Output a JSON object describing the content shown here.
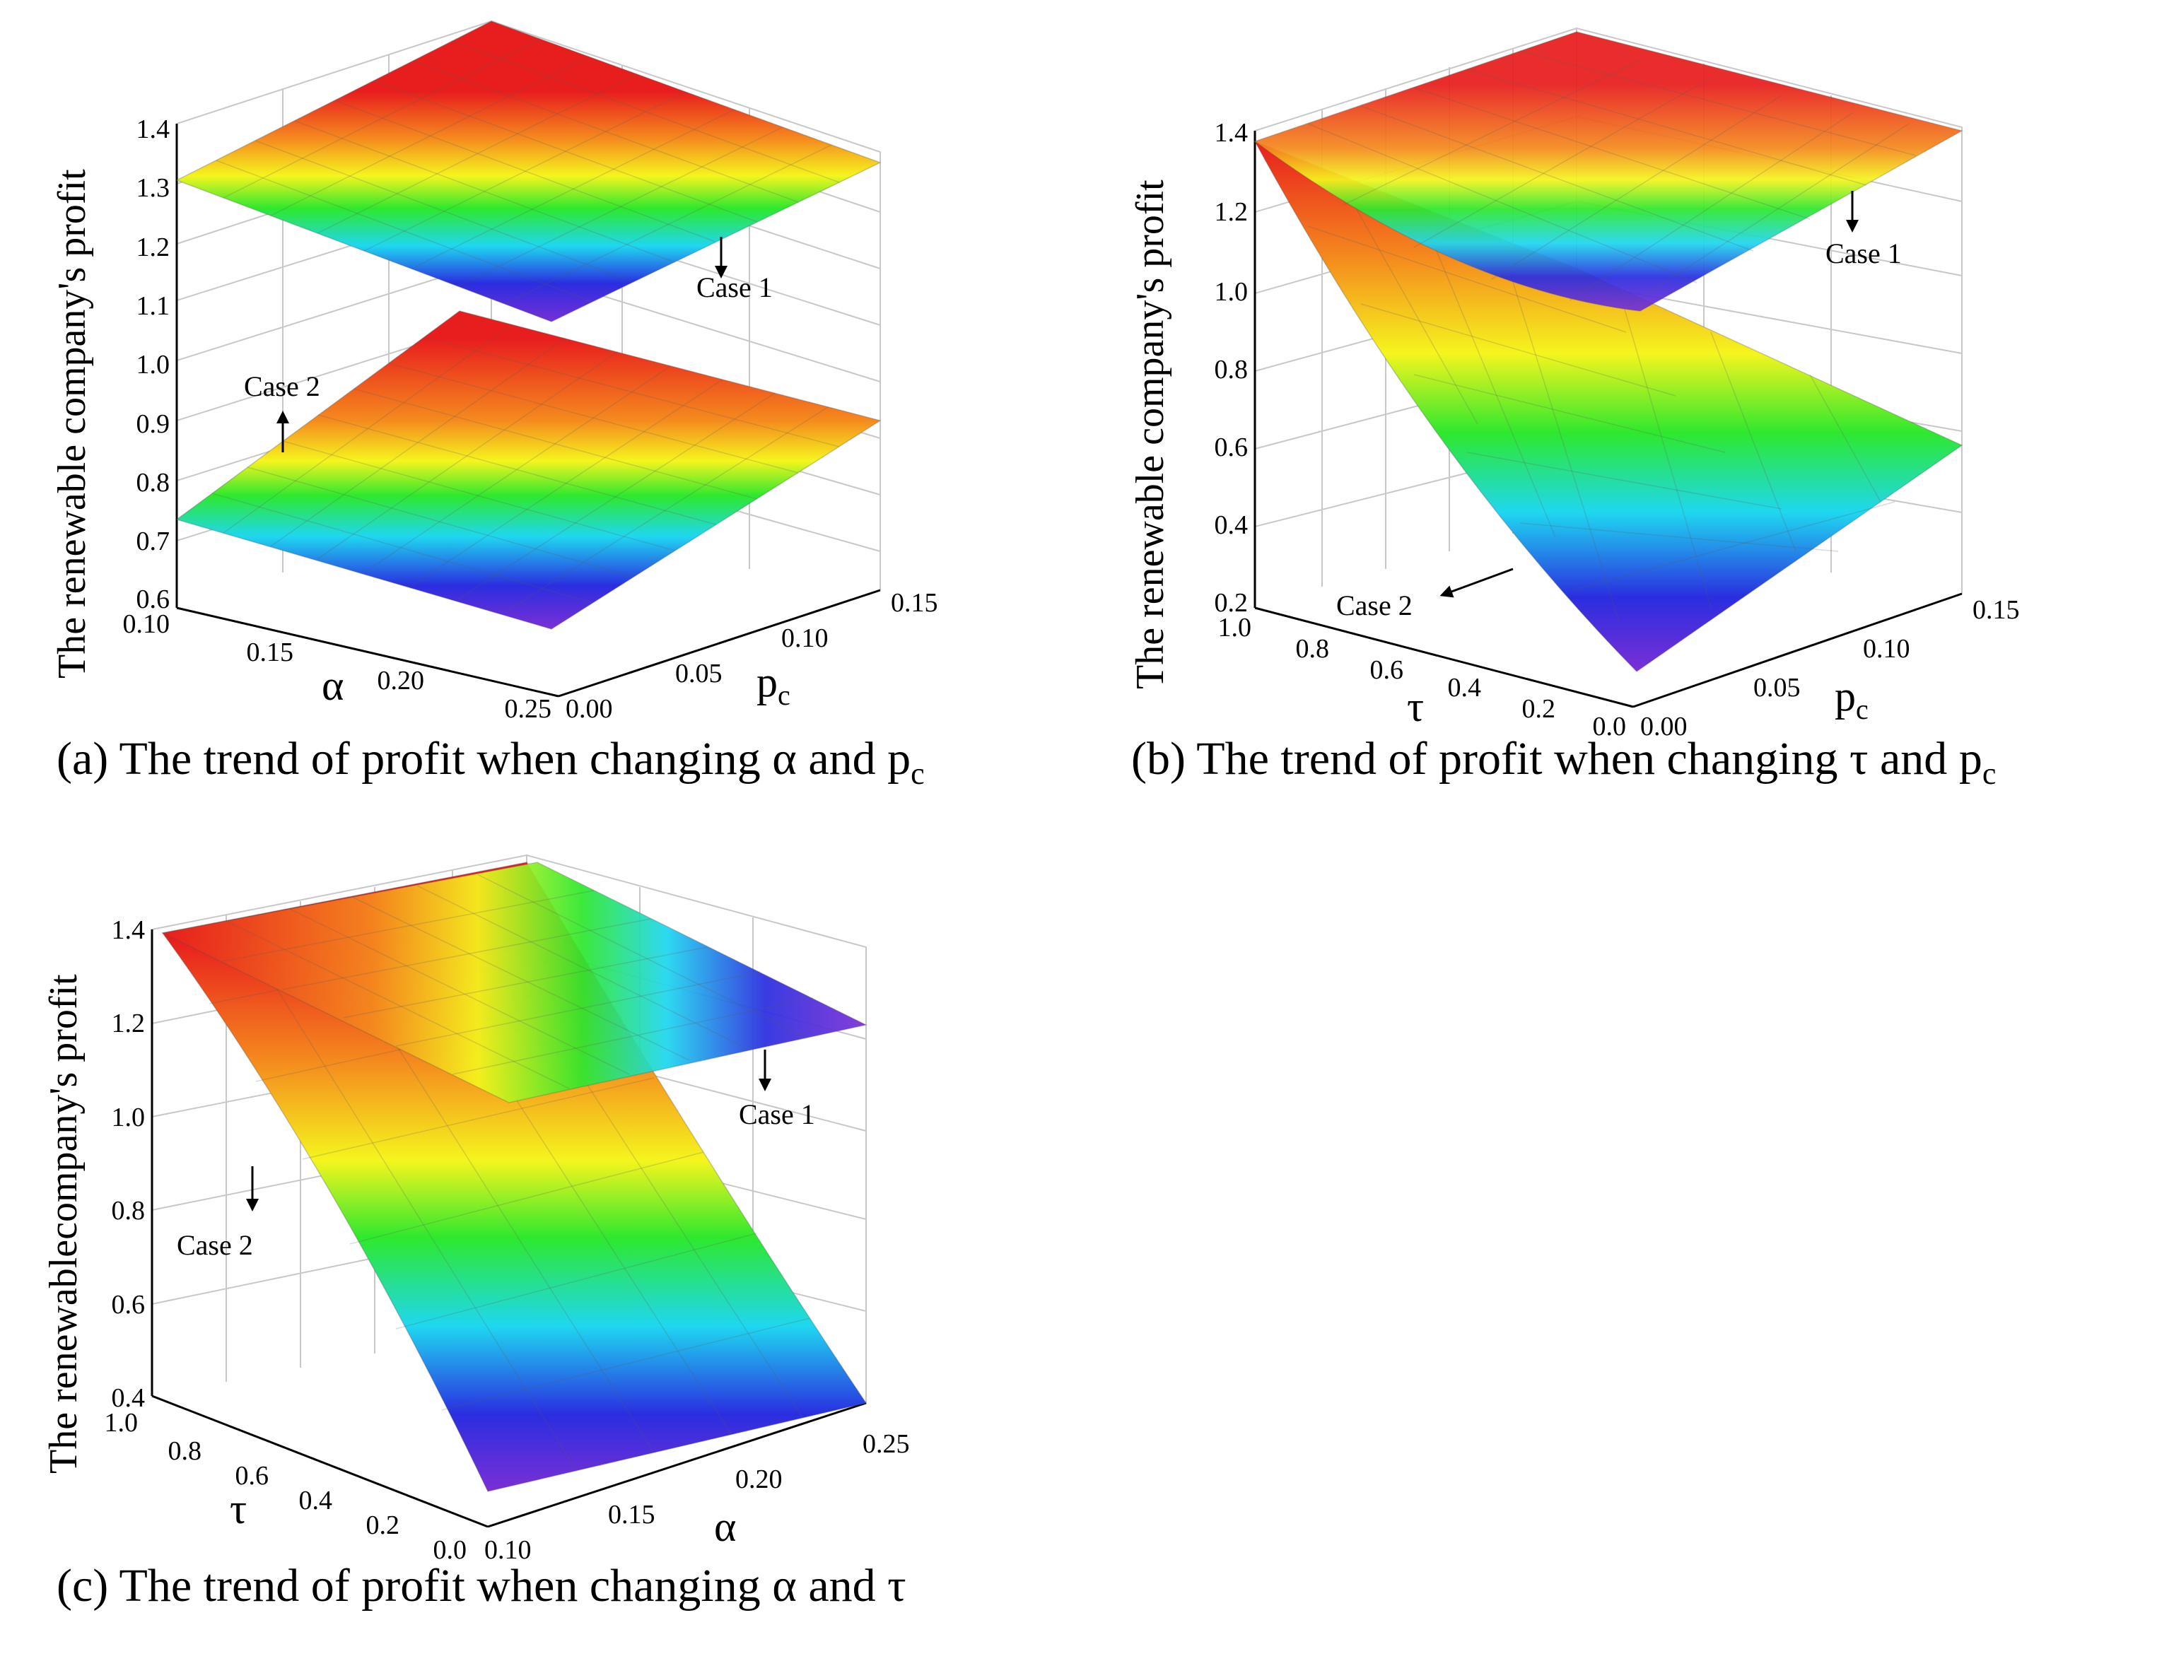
{
  "colors": {
    "colormap": [
      "#7b2fd6",
      "#2a2ee0",
      "#1fd7f0",
      "#2ee82e",
      "#f5f51e",
      "#f58a1e",
      "#e81e1e"
    ],
    "grid": "#c8c8c8",
    "axes": "#000000",
    "mesh": "rgba(90,90,90,0.22)"
  },
  "chart_data": [
    {
      "id": "a",
      "type": "surface3d",
      "caption_text": "(a) The trend of profit when changing ",
      "caption_sym1": "α",
      "caption_and": " and ",
      "caption_sym2": "p",
      "caption_sub": "c",
      "ylabel": "The renewable company's profit",
      "depth_label": "α",
      "width_label": "p",
      "width_label_sub": "c",
      "zlim": [
        0.6,
        1.4
      ],
      "z_ticks": [
        "0.6",
        "0.7",
        "0.8",
        "0.9",
        "1.0",
        "1.1",
        "1.2",
        "1.3",
        "1.4"
      ],
      "depth_ticks": [
        "0.10",
        "0.15",
        "0.20",
        "0.25"
      ],
      "width_ticks": [
        "0.00",
        "0.05",
        "0.10",
        "0.15"
      ],
      "depth_range": [
        0.1,
        0.25
      ],
      "width_range": [
        0.0,
        0.15
      ],
      "surfaces": [
        {
          "name": "Case 1",
          "z_grid": [
            [
              1.28,
              1.29,
              1.31,
              1.33
            ],
            [
              1.22,
              1.26,
              1.3,
              1.34
            ],
            [
              1.13,
              1.22,
              1.29,
              1.35
            ],
            [
              1.06,
              1.18,
              1.28,
              1.37
            ]
          ]
        },
        {
          "name": "Case 2",
          "z_grid": [
            [
              0.73,
              0.76,
              0.83,
              0.89
            ],
            [
              0.71,
              0.76,
              0.84,
              0.92
            ],
            [
              0.69,
              0.76,
              0.85,
              0.94
            ],
            [
              0.67,
              0.76,
              0.86,
              0.95
            ]
          ]
        }
      ],
      "annotations": [
        {
          "text": "Case 1",
          "arrow": "down"
        },
        {
          "text": "Case 2",
          "arrow": "up"
        }
      ]
    },
    {
      "id": "b",
      "type": "surface3d",
      "caption_text": "(b) The trend of profit when changing ",
      "caption_sym1": "τ",
      "caption_and": " and ",
      "caption_sym2": "p",
      "caption_sub": "c",
      "ylabel": "The renewable company's profit",
      "depth_label": "τ",
      "width_label": "p",
      "width_label_sub": "c",
      "zlim": [
        0.2,
        1.4
      ],
      "z_ticks": [
        "0.2",
        "0.4",
        "0.6",
        "0.8",
        "1.0",
        "1.2",
        "1.4"
      ],
      "depth_ticks": [
        "1.0",
        "0.8",
        "0.6",
        "0.4",
        "0.2",
        "0.0"
      ],
      "width_ticks": [
        "0.00",
        "0.05",
        "0.10",
        "0.15"
      ],
      "depth_range": [
        1.0,
        0.0
      ],
      "width_range": [
        0.0,
        0.15
      ],
      "surfaces": [
        {
          "name": "Case 1",
          "z_grid": [
            [
              1.38,
              1.4,
              1.42,
              1.43
            ],
            [
              1.3,
              1.34,
              1.38,
              1.42
            ],
            [
              1.16,
              1.25,
              1.33,
              1.41
            ],
            [
              1.0,
              1.15,
              1.28,
              1.4
            ],
            [
              0.9,
              1.08,
              1.24,
              1.4
            ],
            [
              0.86,
              1.05,
              1.22,
              1.4
            ]
          ]
        },
        {
          "name": "Case 2",
          "z_grid": [
            [
              1.38,
              1.34,
              1.26,
              1.2
            ],
            [
              1.0,
              0.95,
              0.9,
              0.84
            ],
            [
              0.7,
              0.68,
              0.64,
              0.6
            ],
            [
              0.48,
              0.47,
              0.46,
              0.44
            ],
            [
              0.32,
              0.34,
              0.36,
              0.38
            ],
            [
              0.25,
              0.28,
              0.34,
              0.4
            ]
          ]
        }
      ],
      "annotations": [
        {
          "text": "Case 1",
          "arrow": "down"
        },
        {
          "text": "Case 2",
          "arrow": "left"
        }
      ]
    },
    {
      "id": "c",
      "type": "surface3d",
      "caption_text": "(c) The trend of profit when changing ",
      "caption_sym1": "α",
      "caption_and": " and ",
      "caption_sym2": "τ",
      "caption_sub": "",
      "ylabel": "The renewablecompany's profit",
      "depth_label": "τ",
      "width_label": "α",
      "width_label_sub": "",
      "zlim": [
        0.4,
        1.4
      ],
      "z_ticks": [
        "0.4",
        "0.6",
        "0.8",
        "1.0",
        "1.2",
        "1.4"
      ],
      "depth_ticks": [
        "1.0",
        "0.8",
        "0.6",
        "0.4",
        "0.2",
        "0.0"
      ],
      "width_ticks": [
        "0.10",
        "0.15",
        "0.20",
        "0.25"
      ],
      "depth_range": [
        1.0,
        0.0
      ],
      "width_range": [
        0.1,
        0.25
      ],
      "surfaces": [
        {
          "name": "Case 1",
          "z_grid": [
            [
              1.4,
              1.38,
              1.3,
              1.22
            ],
            [
              1.4,
              1.34,
              1.26,
              1.22
            ],
            [
              1.4,
              1.3,
              1.22,
              1.22
            ],
            [
              1.38,
              1.26,
              1.2,
              1.22
            ],
            [
              1.34,
              1.22,
              1.18,
              1.22
            ],
            [
              1.3,
              1.2,
              1.18,
              1.22
            ]
          ]
        },
        {
          "name": "Case 2",
          "z_grid": [
            [
              1.4,
              1.4,
              1.4,
              1.4
            ],
            [
              1.05,
              1.02,
              0.98,
              0.94
            ],
            [
              0.8,
              0.76,
              0.72,
              0.68
            ],
            [
              0.62,
              0.58,
              0.54,
              0.5
            ],
            [
              0.5,
              0.46,
              0.43,
              0.4
            ],
            [
              0.45,
              0.42,
              0.41,
              0.4
            ]
          ]
        }
      ],
      "annotations": [
        {
          "text": "Case 1",
          "arrow": "down"
        },
        {
          "text": "Case 2",
          "arrow": "down"
        }
      ]
    }
  ]
}
